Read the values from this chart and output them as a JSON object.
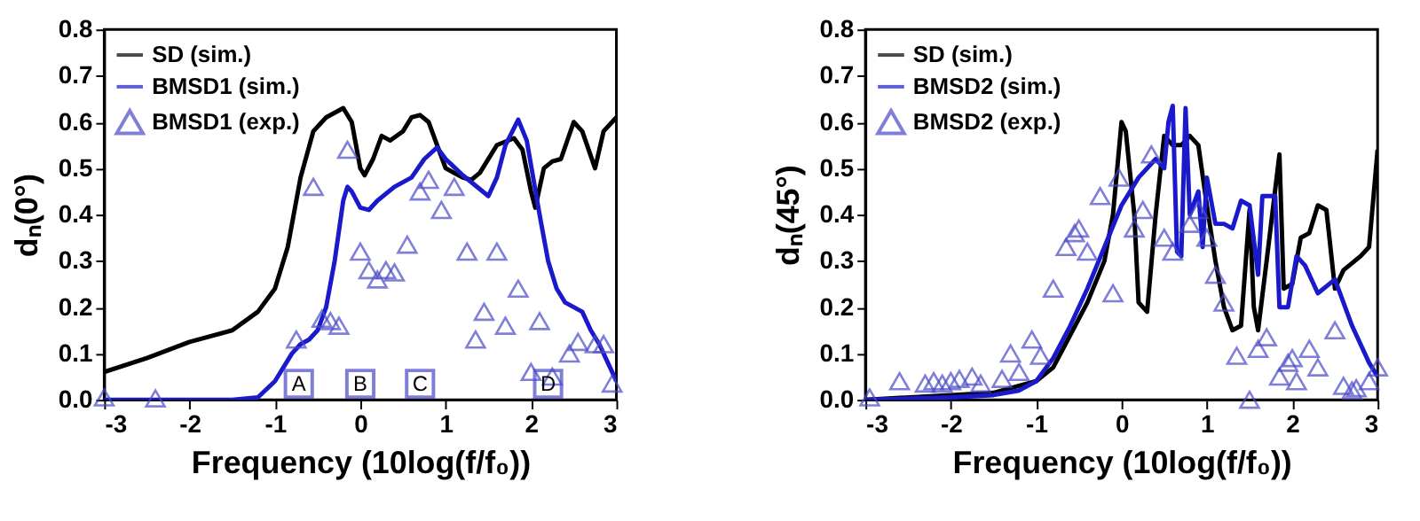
{
  "chart_data": [
    {
      "type": "line",
      "xlabel": "Frequency (10log(f/f₀))",
      "ylabel": "dₙ(0°)",
      "xlim": [
        -3,
        3
      ],
      "xticks": [
        -3,
        -2,
        -1,
        0,
        1,
        2,
        3
      ],
      "ylim": [
        0,
        0.8
      ],
      "yticks": [
        {
          "value": 0,
          "label": "0.0"
        },
        0.1,
        0.2,
        0.3,
        0.4,
        0.5,
        0.6,
        0.7,
        0.8
      ],
      "grid": false,
      "legend": "top left",
      "annotations": [
        {
          "text": "A",
          "x": -0.72
        },
        {
          "text": "B",
          "x": 0.0
        },
        {
          "text": "C",
          "x": 0.7
        },
        {
          "text": "D",
          "x": 2.2
        }
      ],
      "series": [
        {
          "name": "SD (sim.)",
          "line_style": "solid",
          "color": "#000000",
          "x": [
            -3,
            -2.5,
            -2,
            -1.5,
            -1.2,
            -1,
            -0.85,
            -0.7,
            -0.55,
            -0.4,
            -0.2,
            -0.1,
            0,
            0.05,
            0.15,
            0.25,
            0.35,
            0.5,
            0.6,
            0.7,
            0.8,
            0.9,
            1.0,
            1.2,
            1.3,
            1.4,
            1.6,
            1.8,
            1.9,
            2.0,
            2.05,
            2.15,
            2.25,
            2.35,
            2.5,
            2.6,
            2.75,
            2.85,
            3
          ],
          "values": [
            0.06,
            0.09,
            0.125,
            0.15,
            0.19,
            0.24,
            0.33,
            0.48,
            0.58,
            0.61,
            0.63,
            0.6,
            0.5,
            0.485,
            0.52,
            0.57,
            0.56,
            0.58,
            0.61,
            0.615,
            0.6,
            0.55,
            0.5,
            0.48,
            0.475,
            0.49,
            0.55,
            0.565,
            0.54,
            0.45,
            0.415,
            0.5,
            0.515,
            0.52,
            0.6,
            0.58,
            0.5,
            0.58,
            0.61
          ]
        },
        {
          "name": "BMSD1 (sim.)",
          "line_style": "solid",
          "color": "#1a1acc",
          "x": [
            -3,
            -1.5,
            -1.2,
            -1.0,
            -0.8,
            -0.7,
            -0.6,
            -0.5,
            -0.4,
            -0.3,
            -0.2,
            -0.15,
            -0.1,
            0,
            0.1,
            0.2,
            0.4,
            0.6,
            0.75,
            0.9,
            1.0,
            1.2,
            1.5,
            1.6,
            1.7,
            1.85,
            1.95,
            2.1,
            2.2,
            2.3,
            2.4,
            2.6,
            2.7,
            2.8,
            2.9,
            3
          ],
          "values": [
            0,
            0,
            0.005,
            0.04,
            0.1,
            0.12,
            0.13,
            0.15,
            0.2,
            0.3,
            0.43,
            0.46,
            0.45,
            0.415,
            0.41,
            0.43,
            0.46,
            0.48,
            0.52,
            0.545,
            0.52,
            0.485,
            0.44,
            0.48,
            0.55,
            0.605,
            0.56,
            0.4,
            0.3,
            0.24,
            0.21,
            0.19,
            0.15,
            0.12,
            0.08,
            0.04
          ]
        },
        {
          "name": "BMSD1 (exp.)",
          "type": "scatter",
          "marker": "triangle",
          "color": "#4a4ac8",
          "x": [
            -3,
            -2.4,
            -0.75,
            -0.55,
            -0.45,
            -0.35,
            -0.25,
            -0.15,
            0,
            0.1,
            0.2,
            0.3,
            0.4,
            0.55,
            0.7,
            0.8,
            0.95,
            1.1,
            1.25,
            1.35,
            1.45,
            1.6,
            1.7,
            1.85,
            2.0,
            2.1,
            2.25,
            2.45,
            2.55,
            2.75,
            2.85,
            2.95
          ],
          "values": [
            0.005,
            0.003,
            0.13,
            0.46,
            0.175,
            0.17,
            0.16,
            0.54,
            0.32,
            0.28,
            0.26,
            0.28,
            0.275,
            0.335,
            0.45,
            0.475,
            0.41,
            0.46,
            0.32,
            0.13,
            0.19,
            0.32,
            0.16,
            0.24,
            0.06,
            0.17,
            0.05,
            0.1,
            0.125,
            0.12,
            0.12,
            0.035
          ]
        }
      ]
    },
    {
      "type": "line",
      "xlabel": "Frequency (10log(f/f₀))",
      "ylabel": "dₙ(45°)",
      "xlim": [
        -3,
        3
      ],
      "xticks": [
        -3,
        -2,
        -1,
        0,
        1,
        2,
        3
      ],
      "ylim": [
        0,
        0.8
      ],
      "yticks": [
        {
          "value": 0,
          "label": "0.0"
        },
        0.1,
        0.2,
        0.3,
        0.4,
        0.5,
        0.6,
        0.7,
        0.8
      ],
      "grid": false,
      "legend": "top left",
      "series": [
        {
          "name": "SD (sim.)",
          "line_style": "solid",
          "color": "#000000",
          "x": [
            -3,
            -2,
            -1.5,
            -1.2,
            -1,
            -0.8,
            -0.6,
            -0.4,
            -0.2,
            -0.1,
            0,
            0.05,
            0.15,
            0.2,
            0.3,
            0.4,
            0.5,
            0.6,
            0.7,
            0.8,
            0.9,
            1.0,
            1.1,
            1.2,
            1.3,
            1.4,
            1.5,
            1.55,
            1.6,
            1.7,
            1.85,
            1.9,
            2.0,
            2.1,
            2.2,
            2.3,
            2.4,
            2.5,
            2.6,
            2.8,
            2.9,
            3
          ],
          "values": [
            0,
            0.01,
            0.015,
            0.03,
            0.04,
            0.07,
            0.14,
            0.21,
            0.3,
            0.4,
            0.6,
            0.58,
            0.4,
            0.21,
            0.19,
            0.4,
            0.57,
            0.55,
            0.55,
            0.57,
            0.55,
            0.42,
            0.3,
            0.2,
            0.15,
            0.16,
            0.41,
            0.2,
            0.15,
            0.3,
            0.53,
            0.24,
            0.25,
            0.35,
            0.36,
            0.42,
            0.41,
            0.24,
            0.28,
            0.31,
            0.33,
            0.54
          ]
        },
        {
          "name": "BMSD2 (sim.)",
          "line_style": "solid",
          "color": "#1a1acc",
          "x": [
            -3,
            -2,
            -1.5,
            -1.2,
            -1,
            -0.8,
            -0.6,
            -0.4,
            -0.2,
            0,
            0.2,
            0.4,
            0.5,
            0.55,
            0.6,
            0.65,
            0.7,
            0.75,
            0.8,
            0.9,
            0.95,
            1.0,
            1.1,
            1.2,
            1.3,
            1.4,
            1.5,
            1.6,
            1.65,
            1.8,
            1.85,
            1.95,
            2.05,
            2.15,
            2.3,
            2.5,
            2.7,
            2.9,
            3
          ],
          "values": [
            0,
            0.005,
            0.01,
            0.02,
            0.04,
            0.09,
            0.16,
            0.24,
            0.33,
            0.42,
            0.48,
            0.52,
            0.5,
            0.6,
            0.635,
            0.32,
            0.31,
            0.63,
            0.4,
            0.45,
            0.33,
            0.48,
            0.38,
            0.38,
            0.37,
            0.43,
            0.42,
            0.27,
            0.44,
            0.44,
            0.2,
            0.2,
            0.31,
            0.29,
            0.23,
            0.26,
            0.16,
            0.08,
            0.05
          ]
        },
        {
          "name": "BMSD2 (exp.)",
          "type": "scatter",
          "marker": "triangle",
          "color": "#4a4ac8",
          "x": [
            -2.95,
            -2.6,
            -2.3,
            -2.2,
            -2.1,
            -2.0,
            -1.9,
            -1.75,
            -1.65,
            -1.4,
            -1.3,
            -1.2,
            -1.05,
            -0.95,
            -0.8,
            -0.65,
            -0.55,
            -0.5,
            -0.4,
            -0.25,
            -0.1,
            -0.03,
            0.15,
            0.25,
            0.35,
            0.5,
            0.6,
            0.8,
            0.9,
            1.0,
            1.1,
            1.2,
            1.35,
            1.5,
            1.6,
            1.7,
            1.85,
            1.95,
            2.0,
            2.05,
            2.2,
            2.3,
            2.5,
            2.6,
            2.7,
            2.75,
            2.9,
            3
          ],
          "values": [
            0.005,
            0.04,
            0.035,
            0.04,
            0.035,
            0.04,
            0.045,
            0.05,
            0.035,
            0.045,
            0.1,
            0.06,
            0.13,
            0.095,
            0.24,
            0.33,
            0.36,
            0.37,
            0.32,
            0.44,
            0.23,
            0.48,
            0.37,
            0.41,
            0.53,
            0.35,
            0.32,
            0.38,
            0.41,
            0.35,
            0.27,
            0.21,
            0.095,
            0.0,
            0.11,
            0.135,
            0.05,
            0.08,
            0.09,
            0.04,
            0.11,
            0.07,
            0.15,
            0.03,
            0.02,
            0.025,
            0.04,
            0.07
          ]
        }
      ]
    }
  ]
}
